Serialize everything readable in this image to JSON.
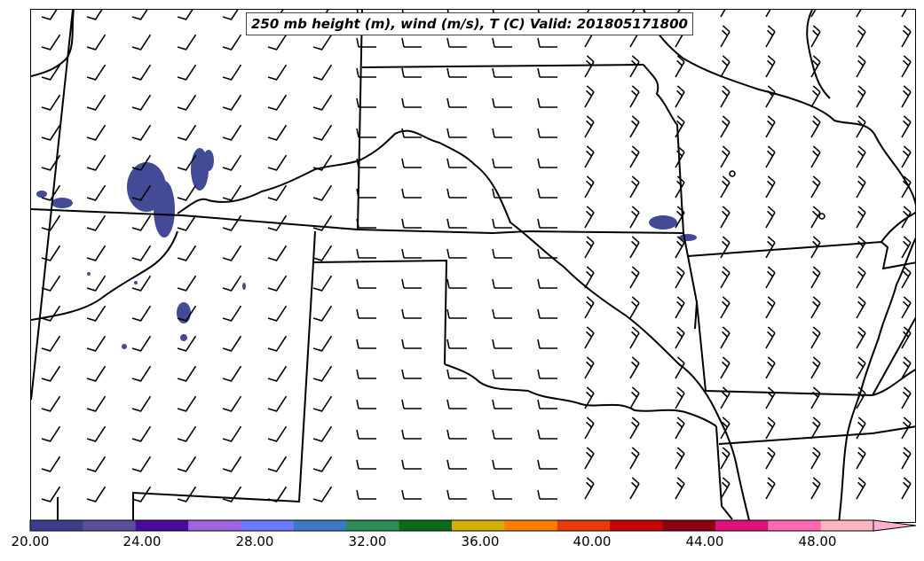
{
  "title": "250 mb height (m), wind (m/s), T (C) Valid: 201805171800",
  "colorbar": {
    "colors": [
      "#3c3f8e",
      "#5b4f9c",
      "#4a0aa0",
      "#a064e0",
      "#6e78ff",
      "#3a7cc4",
      "#2e8b57",
      "#0d6b16",
      "#d4b000",
      "#ff8000",
      "#e83c0a",
      "#c80000",
      "#8b0010",
      "#e0107a",
      "#ff69b4",
      "#ffb6c1"
    ],
    "extend_color": "#ffb0d0",
    "tick_labels": [
      "20.00",
      "24.00",
      "28.00",
      "32.00",
      "36.00",
      "40.00",
      "44.00",
      "48.00"
    ]
  },
  "map": {
    "state_line_color": "#000000",
    "fill_color": "#434a96"
  }
}
